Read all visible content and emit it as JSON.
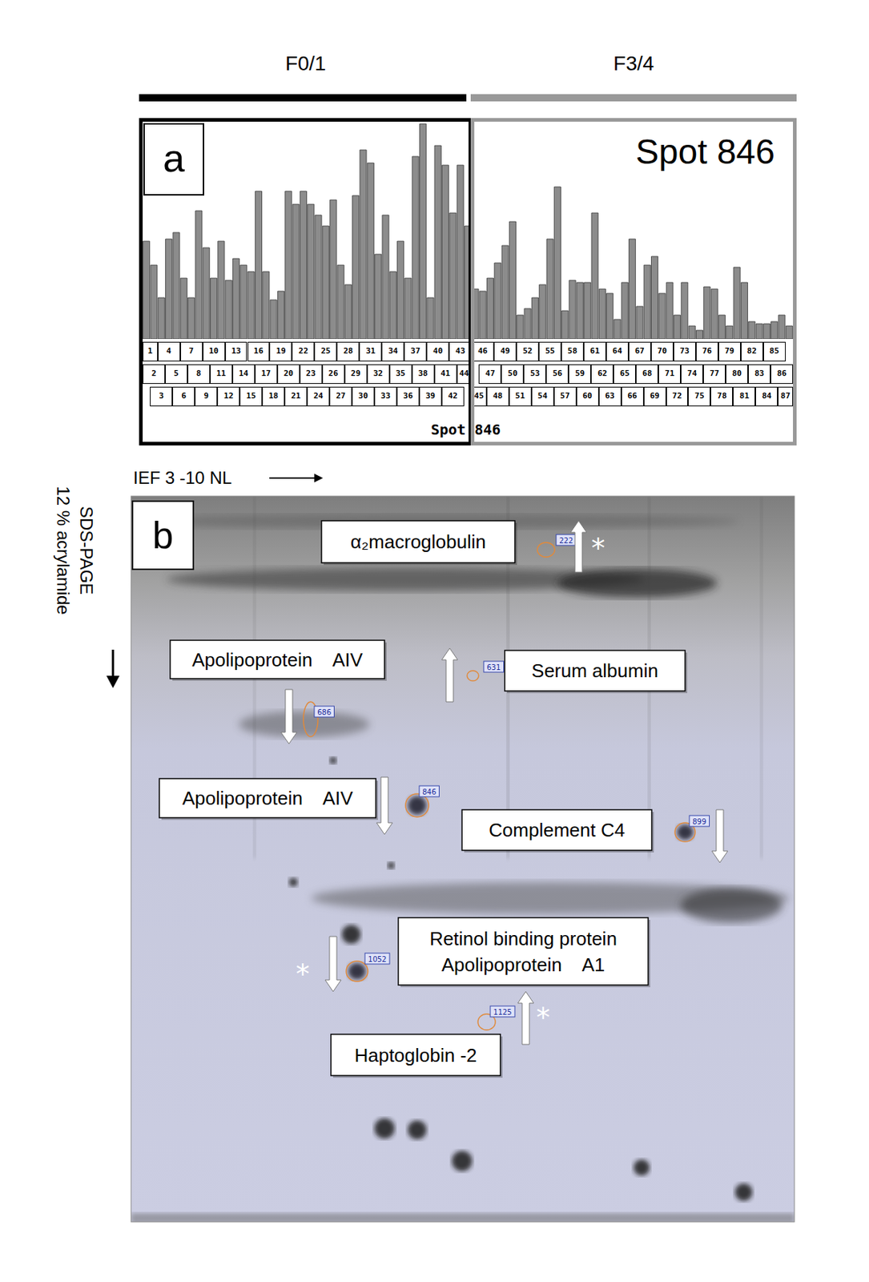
{
  "chart_data": {
    "type": "bar",
    "panel_label": "a",
    "title": "Spot 846",
    "categories": [
      "1",
      "2",
      "3",
      "4",
      "5",
      "6",
      "7",
      "8",
      "9",
      "10",
      "11",
      "12",
      "13",
      "14",
      "15",
      "16",
      "17",
      "18",
      "19",
      "20",
      "21",
      "22",
      "23",
      "24",
      "25",
      "26",
      "27",
      "28",
      "29",
      "30",
      "31",
      "32",
      "33",
      "34",
      "35",
      "36",
      "37",
      "38",
      "39",
      "40",
      "41",
      "42",
      "43",
      "44",
      "45",
      "46",
      "47",
      "48",
      "49",
      "50",
      "51",
      "52",
      "53",
      "54",
      "55",
      "56",
      "57",
      "58",
      "59",
      "60",
      "61",
      "62",
      "63",
      "64",
      "65",
      "66",
      "67",
      "68",
      "69",
      "70",
      "71",
      "72",
      "73",
      "74",
      "75",
      "76",
      "77",
      "78",
      "79",
      "80",
      "81",
      "82",
      "83",
      "84",
      "85",
      "86",
      "87"
    ],
    "series": [
      {
        "name": "F0/1",
        "color": "#000000",
        "values": [
          45,
          34,
          19,
          46,
          49,
          28,
          19,
          59,
          42,
          28,
          45,
          27,
          37,
          34,
          31,
          68,
          31,
          18,
          22,
          68,
          62,
          68,
          62,
          57,
          52,
          64,
          34,
          25,
          66,
          87,
          81,
          39,
          57,
          31,
          45,
          28,
          84,
          99,
          19,
          89,
          80,
          58,
          80,
          52,
          null,
          null,
          null,
          null,
          null,
          null,
          null,
          null,
          null,
          null,
          null,
          null,
          null,
          null,
          null,
          null,
          null,
          null,
          null,
          null,
          null,
          null,
          null,
          null,
          null,
          null,
          null,
          null,
          null,
          null,
          null,
          null,
          null,
          null,
          null,
          null,
          null,
          null,
          null,
          null,
          null,
          null,
          null
        ]
      },
      {
        "name": "F3/4",
        "color": "#999999",
        "values": [
          null,
          null,
          null,
          null,
          null,
          null,
          null,
          null,
          null,
          null,
          null,
          null,
          null,
          null,
          null,
          null,
          null,
          null,
          null,
          null,
          null,
          null,
          null,
          null,
          null,
          null,
          null,
          null,
          null,
          null,
          null,
          null,
          null,
          null,
          null,
          null,
          null,
          null,
          null,
          null,
          null,
          null,
          null,
          null,
          23,
          22,
          28,
          35,
          43,
          54,
          11,
          14,
          19,
          25,
          46,
          70,
          13,
          27,
          26,
          26,
          58,
          23,
          21,
          9,
          26,
          46,
          15,
          34,
          38,
          21,
          26,
          11,
          26,
          6,
          4,
          24,
          23,
          11,
          6,
          33,
          26,
          8,
          7,
          7,
          8,
          11,
          6
        ]
      }
    ],
    "color": "#8c8c8c",
    "ylim": [
      0,
      100
    ],
    "tick_labels": false,
    "grid": false,
    "footer": [
      "Spot",
      "846"
    ]
  },
  "gel": {
    "panel_label": "b",
    "x_axis_label": "IEF 3 -10 NL",
    "y_axis_label": [
      "SDS-PAGE",
      "12 % acrylamide"
    ],
    "spots": [
      {
        "spot": "222",
        "protein": [
          "α₂macroglobulin"
        ],
        "direction": "up",
        "note": "*"
      },
      {
        "spot": "631",
        "protein": [
          "Serum albumin"
        ],
        "direction": "up"
      },
      {
        "spot": "686",
        "protein": [
          "Apolipoprotein    AIV"
        ],
        "direction": "down"
      },
      {
        "spot": "846",
        "protein": [
          "Apolipoprotein    AIV"
        ],
        "direction": "down"
      },
      {
        "spot": "899",
        "protein": [
          "Complement C4"
        ],
        "direction": "down"
      },
      {
        "spot": "1052",
        "protein": [
          "Retinol binding protein",
          "Apolipoprotein    A1"
        ],
        "direction": "down",
        "note": "*"
      },
      {
        "spot": "1125",
        "protein": [
          "Haptoglobin -2"
        ],
        "direction": "up",
        "note": "*"
      }
    ]
  }
}
